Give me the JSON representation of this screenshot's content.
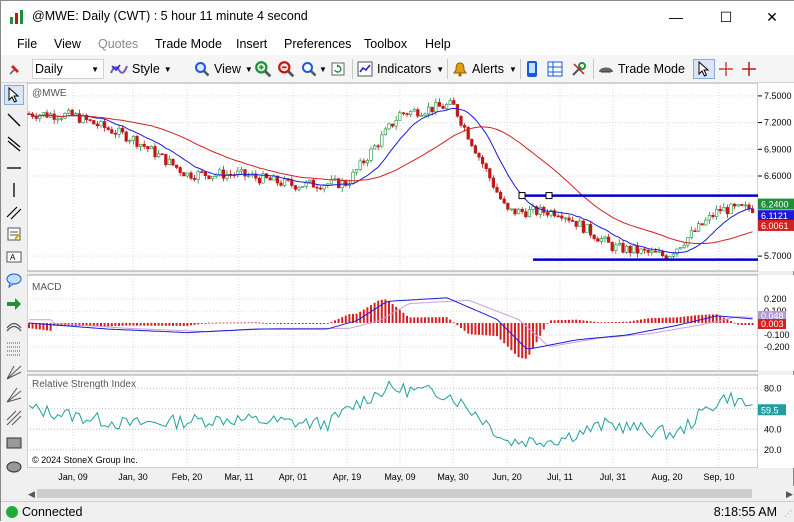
{
  "window": {
    "title": "@MWE: Daily (CWT) : 5 hour 11 minute 4 second",
    "minimize_glyph": "—",
    "maximize_glyph": "☐",
    "close_glyph": "✕"
  },
  "menu": [
    "File",
    "View",
    "Quotes",
    "Trade Mode",
    "Insert",
    "Preferences",
    "Toolbox",
    "Help"
  ],
  "menu_disabled": [
    "Quotes"
  ],
  "toolbar": {
    "interval": "Daily",
    "style_label": "Style",
    "view_label": "View",
    "indicators_label": "Indicators",
    "alerts_label": "Alerts",
    "trade_mode_label": "Trade Mode"
  },
  "chart": {
    "symbol_label": "@MWE",
    "macd_label": "MACD",
    "rsi_label": "Relative Strength Index",
    "copyright": "© 2024 StoneX Group Inc.",
    "price_ticks": [
      "7.5000",
      "7.2000",
      "6.9000",
      "6.6000",
      "5.7000"
    ],
    "price_tags": [
      {
        "label": "6.2400",
        "color": "#1f8f3a"
      },
      {
        "label": "6.1121",
        "color": "#1a1ad8"
      },
      {
        "label": "6.0061",
        "color": "#d42020"
      }
    ],
    "macd_ticks": [
      "0.200",
      "0.100",
      "-0.100",
      "-0.200"
    ],
    "macd_tags": [
      {
        "label": "0.048",
        "color": "#b59bd8"
      },
      {
        "label": "0.003",
        "color": "#d42020"
      }
    ],
    "rsi_ticks": [
      "80.0",
      "60.0",
      "40.0",
      "20.0"
    ],
    "rsi_tag": {
      "label": "59.5",
      "color": "#1f9f9f"
    },
    "date_labels": [
      "Jan, 09",
      "Jan, 30",
      "Feb, 20",
      "Mar, 11",
      "Apr, 01",
      "Apr, 19",
      "May, 09",
      "May, 30",
      "Jun, 20",
      "Jul, 11",
      "Jul, 31",
      "Aug, 20",
      "Sep, 10"
    ],
    "colors": {
      "up": "#1f8f3a",
      "down": "#c01818",
      "sma_fast": "#1a1ad8",
      "sma_slow": "#d42020",
      "macd_line": "#1a1ad8",
      "macd_signal": "#c9a0dc",
      "rsi": "#1f9f9f",
      "hline": "#0000cc"
    }
  },
  "chart_data": {
    "type": "candlestick",
    "price_axis_ticks": [
      7.5,
      7.2,
      6.9,
      6.6,
      5.7
    ],
    "support_line": 5.66,
    "resistance_line": 6.38,
    "last_price": 6.24,
    "sma_fast_last": 6.1121,
    "sma_slow_last": 6.0061,
    "price_path": [
      [
        "Jan, 09",
        7.28
      ],
      [
        "Jan, 30",
        7.02
      ],
      [
        "Feb, 20",
        6.62
      ],
      [
        "Mar, 11",
        6.62
      ],
      [
        "Apr, 01",
        6.5
      ],
      [
        "Apr, 19",
        6.52
      ],
      [
        "May, 09",
        7.3
      ],
      [
        "May, 30",
        7.4
      ],
      [
        "Jun, 20",
        6.2
      ],
      [
        "Jul, 11",
        6.2
      ],
      [
        "Jul, 31",
        5.8
      ],
      [
        "Aug, 20",
        5.7
      ],
      [
        "Sep, 10",
        6.22
      ]
    ],
    "macd_axis_ticks": [
      0.2,
      0.1,
      -0.1,
      -0.2
    ],
    "macd_last": 0.048,
    "macd_hist_last": 0.003,
    "rsi_axis_ticks": [
      80,
      60,
      40,
      20
    ],
    "rsi_last": 59.5
  },
  "status": {
    "connection": "Connected",
    "time": "8:18:55 AM"
  }
}
